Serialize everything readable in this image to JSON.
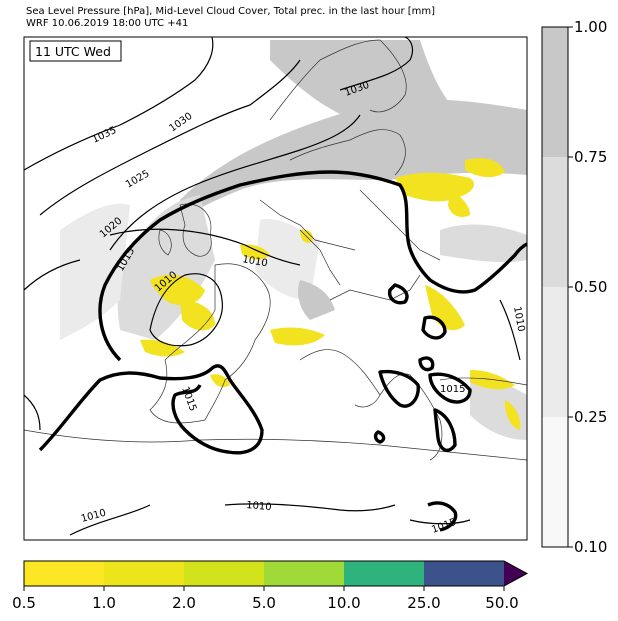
{
  "header": {
    "line1": "Sea Level Pressure [hPa], Mid-Level Cloud Cover, Total prec. in the last hour [mm]",
    "line2": "WRF 10.06.2019 18:00 UTC +41"
  },
  "map": {
    "time_label": "11 UTC Wed",
    "isobar_labels": [
      "1035",
      "1030",
      "1030",
      "1025",
      "1020",
      "1015",
      "1010",
      "1010",
      "1015",
      "1015",
      "1010",
      "1010",
      "1010",
      "1015"
    ]
  },
  "cloud_colorbar": {
    "ticks": [
      "1.00",
      "0.75",
      "0.50",
      "0.25",
      "0.10"
    ],
    "colors": [
      "#c8c8c8",
      "#dcdcdc",
      "#ebebeb",
      "#f8f8f8"
    ]
  },
  "precip_colorbar": {
    "ticks": [
      "0.5",
      "1.0",
      "2.0",
      "5.0",
      "10.0",
      "25.0",
      "50.0"
    ],
    "colors": [
      "#fde725",
      "#ede51b",
      "#d2e21b",
      "#a0da39",
      "#2eb37c",
      "#3b528b",
      "#440154"
    ]
  }
}
